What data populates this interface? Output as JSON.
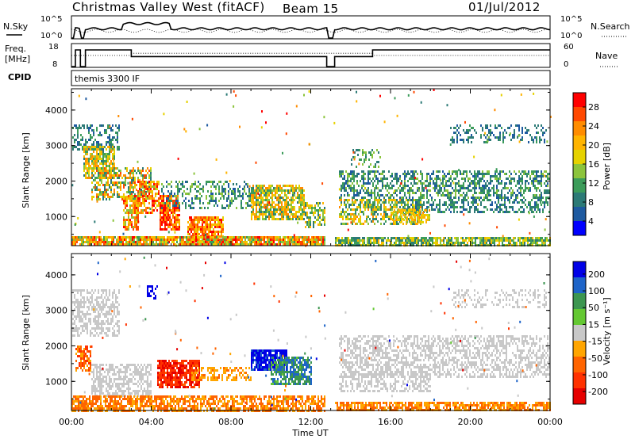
{
  "header": {
    "station": "Christmas Valley West (fitACF)",
    "beam": "Beam 15",
    "date": "01/Jul/2012"
  },
  "status_panels": {
    "nsky_label": "N.Sky",
    "nsky_ticks": [
      "10^5",
      "10^0"
    ],
    "nsearch_label": "N.Search",
    "nsearch_ticks": [
      "10^5",
      "10^0"
    ],
    "freq_label_line1": "Freq.",
    "freq_label_line2": "[MHz]",
    "freq_ticks": [
      "18",
      "8"
    ],
    "nave_label": "Nave",
    "nave_ticks": [
      "60",
      "0"
    ],
    "cpid_label": "CPID",
    "cpid_value": "themis 3300 IF"
  },
  "chart_data": [
    {
      "type": "heatmap",
      "panel": "power",
      "ylabel": "Slant Range [km]",
      "y_ticks": [
        "4000",
        "3000",
        "2000",
        "1000"
      ],
      "colorbar_label": "Power [dB]",
      "colorbar_ticks": [
        "28",
        "24",
        "20",
        "16",
        "12",
        "8",
        "4"
      ],
      "colorbar_colors": [
        "#ff0000",
        "#ff4800",
        "#ff8c00",
        "#ffb400",
        "#e6d200",
        "#8cc43c",
        "#3c9c5a",
        "#2c7a76",
        "#1e5aa0",
        "#0000ff"
      ],
      "x_range_hours": [
        0,
        24
      ],
      "y_range_km": [
        180,
        4600
      ],
      "regions": [
        {
          "t0": 0.05,
          "t1": 2.4,
          "r0": 2900,
          "r1": 3600,
          "dens": 0.45,
          "vmin": 4,
          "vmax": 12
        },
        {
          "t0": 0.6,
          "t1": 2.2,
          "r0": 2100,
          "r1": 3000,
          "dens": 0.75,
          "vmin": 8,
          "vmax": 24
        },
        {
          "t0": 1.0,
          "t1": 4.0,
          "r0": 1500,
          "r1": 2400,
          "dens": 0.55,
          "vmin": 6,
          "vmax": 26
        },
        {
          "t0": 2.6,
          "t1": 3.4,
          "r0": 600,
          "r1": 1600,
          "dens": 0.75,
          "vmin": 12,
          "vmax": 29
        },
        {
          "t0": 3.3,
          "t1": 4.4,
          "r0": 1100,
          "r1": 2000,
          "dens": 0.7,
          "vmin": 14,
          "vmax": 29
        },
        {
          "t0": 4.4,
          "t1": 5.4,
          "r0": 600,
          "r1": 1600,
          "dens": 0.85,
          "vmin": 18,
          "vmax": 30
        },
        {
          "t0": 5.8,
          "t1": 7.6,
          "r0": 300,
          "r1": 1000,
          "dens": 0.8,
          "vmin": 16,
          "vmax": 29
        },
        {
          "t0": 4.5,
          "t1": 9.0,
          "r0": 1200,
          "r1": 2000,
          "dens": 0.35,
          "vmin": 4,
          "vmax": 14
        },
        {
          "t0": 9.0,
          "t1": 11.7,
          "r0": 900,
          "r1": 1900,
          "dens": 0.75,
          "vmin": 8,
          "vmax": 24
        },
        {
          "t0": 11.7,
          "t1": 12.8,
          "r0": 700,
          "r1": 1400,
          "dens": 0.55,
          "vmin": 6,
          "vmax": 20
        },
        {
          "t0": 0.0,
          "t1": 12.8,
          "r0": 180,
          "r1": 450,
          "dens": 0.9,
          "vmin": 10,
          "vmax": 28
        },
        {
          "t0": 13.2,
          "t1": 24.0,
          "r0": 180,
          "r1": 420,
          "dens": 0.8,
          "vmin": 6,
          "vmax": 20
        },
        {
          "t0": 13.4,
          "t1": 17.5,
          "r0": 800,
          "r1": 1500,
          "dens": 0.6,
          "vmin": 6,
          "vmax": 22
        },
        {
          "t0": 13.4,
          "t1": 24.0,
          "r0": 1500,
          "r1": 2300,
          "dens": 0.5,
          "vmin": 4,
          "vmax": 14
        },
        {
          "t0": 16.5,
          "t1": 24.0,
          "r0": 1100,
          "r1": 1500,
          "dens": 0.45,
          "vmin": 4,
          "vmax": 12
        },
        {
          "t0": 16.0,
          "t1": 18.0,
          "r0": 800,
          "r1": 1200,
          "dens": 0.55,
          "vmin": 14,
          "vmax": 22
        },
        {
          "t0": 19.0,
          "t1": 23.8,
          "r0": 3100,
          "r1": 3600,
          "dens": 0.3,
          "vmin": 4,
          "vmax": 10
        },
        {
          "t0": 14.0,
          "t1": 15.5,
          "r0": 2400,
          "r1": 2900,
          "dens": 0.3,
          "vmin": 6,
          "vmax": 14
        }
      ]
    },
    {
      "type": "heatmap",
      "panel": "velocity",
      "ylabel": "Slant Range [km]",
      "y_ticks": [
        "4000",
        "3000",
        "2000",
        "1000"
      ],
      "colorbar_label": "Velocity [m s⁻¹]",
      "colorbar_ticks": [
        "200",
        "100",
        "50",
        "15",
        "-15",
        "-50",
        "-100",
        "-200"
      ],
      "colorbar_colors": [
        "#0000e6",
        "#1e64c8",
        "#3c9650",
        "#64c832",
        "#c8c8c8",
        "#ffa500",
        "#ff6400",
        "#ff3200",
        "#e60000"
      ],
      "x_range_hours": [
        0,
        24
      ],
      "x_ticks": [
        "00:00",
        "04:00",
        "08:00",
        "12:00",
        "16:00",
        "20:00",
        "00:00"
      ],
      "xlabel": "Time UT",
      "y_range_km": [
        180,
        4600
      ],
      "regions": [
        {
          "t0": 0.05,
          "t1": 2.4,
          "r0": 2300,
          "r1": 3600,
          "dens": 0.55,
          "vmin": -15,
          "vmax": 15
        },
        {
          "t0": 0.2,
          "t1": 1.0,
          "r0": 1300,
          "r1": 2000,
          "dens": 0.6,
          "vmin": -150,
          "vmax": -20
        },
        {
          "t0": 1.0,
          "t1": 4.0,
          "r0": 600,
          "r1": 1500,
          "dens": 0.6,
          "vmin": -15,
          "vmax": 15
        },
        {
          "t0": 4.3,
          "t1": 6.4,
          "r0": 800,
          "r1": 1600,
          "dens": 0.85,
          "vmin": -260,
          "vmax": -90
        },
        {
          "t0": 6.0,
          "t1": 9.0,
          "r0": 1000,
          "r1": 1400,
          "dens": 0.45,
          "vmin": -60,
          "vmax": -15
        },
        {
          "t0": 9.0,
          "t1": 10.8,
          "r0": 1300,
          "r1": 1900,
          "dens": 0.85,
          "vmin": 120,
          "vmax": 260
        },
        {
          "t0": 10.0,
          "t1": 12.0,
          "r0": 900,
          "r1": 1700,
          "dens": 0.75,
          "vmin": 20,
          "vmax": 110
        },
        {
          "t0": 0.0,
          "t1": 12.8,
          "r0": 180,
          "r1": 600,
          "dens": 0.7,
          "vmin": -90,
          "vmax": -20
        },
        {
          "t0": 13.2,
          "t1": 24.0,
          "r0": 180,
          "r1": 420,
          "dens": 0.75,
          "vmin": -80,
          "vmax": -20
        },
        {
          "t0": 13.4,
          "t1": 24.0,
          "r0": 1100,
          "r1": 2300,
          "dens": 0.5,
          "vmin": -15,
          "vmax": 15
        },
        {
          "t0": 13.4,
          "t1": 18.0,
          "r0": 700,
          "r1": 1300,
          "dens": 0.45,
          "vmin": -15,
          "vmax": 15
        },
        {
          "t0": 19.0,
          "t1": 23.8,
          "r0": 3100,
          "r1": 3600,
          "dens": 0.25,
          "vmin": -15,
          "vmax": 15
        },
        {
          "t0": 3.8,
          "t1": 4.3,
          "r0": 3300,
          "r1": 3700,
          "dens": 0.4,
          "vmin": 150,
          "vmax": 250
        }
      ]
    }
  ]
}
